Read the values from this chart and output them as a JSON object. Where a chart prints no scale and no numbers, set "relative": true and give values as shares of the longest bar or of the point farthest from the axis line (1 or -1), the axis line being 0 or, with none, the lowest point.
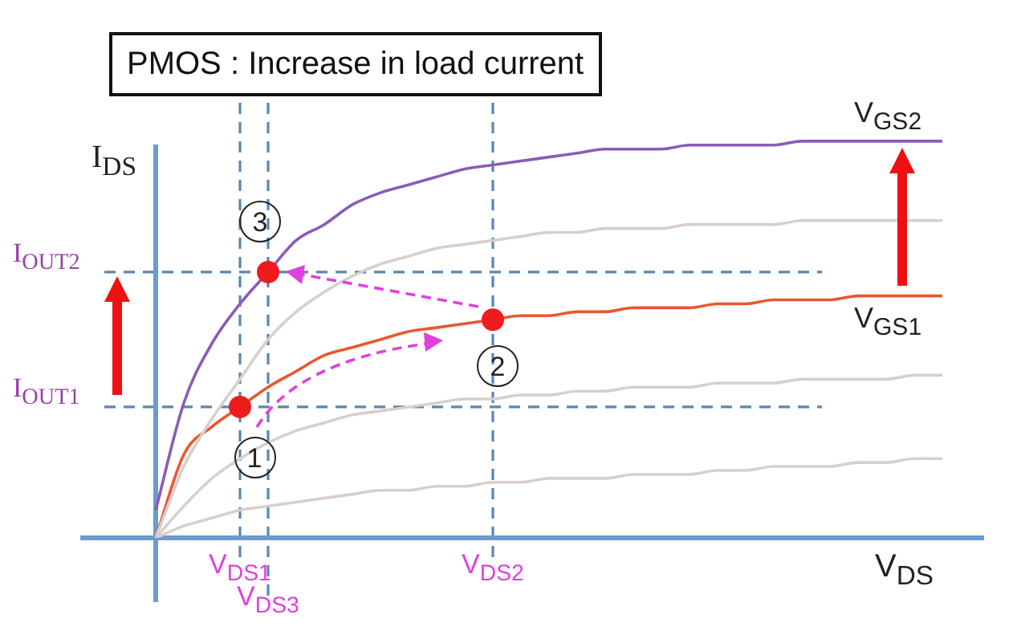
{
  "chart_data": {
    "type": "line",
    "title": "PMOS : Increase in load current",
    "xlabel": "V$_{DS}$",
    "ylabel": "I$_{DS}$",
    "relative": true,
    "legend": false,
    "marker": "none",
    "categories": [
      null,
      null,
      null,
      "V$_{DS1}$",
      "V$_{DS3}$",
      null,
      null,
      null,
      null,
      null,
      null,
      null,
      "V$_{DS2}$",
      null,
      null,
      null,
      null,
      null,
      null,
      null,
      null,
      null,
      null,
      null,
      null,
      null,
      null,
      null,
      null
    ],
    "series": [
      {
        "name": "V$_{GS2}$",
        "color": "#8a5cb8",
        "values": [
          0.07,
          0.34,
          0.49,
          0.59,
          0.67,
          0.75,
          0.79,
          0.84,
          0.87,
          0.89,
          0.91,
          0.93,
          0.94,
          0.95,
          0.96,
          0.97,
          0.98,
          0.98,
          0.98,
          0.99,
          0.99,
          0.99,
          0.99,
          1,
          1,
          1,
          1,
          1,
          1
        ]
      },
      {
        "color": "#d8cfcc",
        "values": [
          0,
          0.18,
          0.3,
          0.4,
          0.5,
          0.57,
          0.62,
          0.66,
          0.69,
          0.71,
          0.73,
          0.74,
          0.75,
          0.76,
          0.77,
          0.77,
          0.78,
          0.78,
          0.78,
          0.79,
          0.79,
          0.79,
          0.79,
          0.8,
          0.8,
          0.8,
          0.8,
          0.8,
          0.8
        ]
      },
      {
        "name": "V$_{GS1}$",
        "color": "#e8582f",
        "values": [
          0,
          0.21,
          0.28,
          0.33,
          0.38,
          0.42,
          0.46,
          0.48,
          0.5,
          0.52,
          0.53,
          0.54,
          0.55,
          0.56,
          0.56,
          0.57,
          0.57,
          0.58,
          0.58,
          0.58,
          0.59,
          0.59,
          0.6,
          0.6,
          0.6,
          0.61,
          0.61,
          0.61,
          0.61
        ]
      },
      {
        "color": "#d8cfcc",
        "values": [
          0,
          0.08,
          0.15,
          0.2,
          0.24,
          0.27,
          0.29,
          0.31,
          0.32,
          0.33,
          0.34,
          0.35,
          0.35,
          0.36,
          0.36,
          0.37,
          0.37,
          0.38,
          0.38,
          0.38,
          0.39,
          0.39,
          0.39,
          0.4,
          0.4,
          0.4,
          0.4,
          0.41,
          0.41
        ]
      },
      {
        "color": "#d8cfcc",
        "values": [
          0,
          0.03,
          0.05,
          0.07,
          0.08,
          0.09,
          0.1,
          0.11,
          0.12,
          0.12,
          0.13,
          0.13,
          0.14,
          0.14,
          0.15,
          0.15,
          0.15,
          0.16,
          0.16,
          0.16,
          0.17,
          0.17,
          0.18,
          0.18,
          0.18,
          0.19,
          0.19,
          0.2,
          0.2
        ]
      },
      {
        "type": "scatter",
        "color": "#ee1c1c",
        "marker": "circle",
        "x": [
          "V$_{DS1}$",
          "V$_{DS3}$",
          "V$_{DS2}$"
        ],
        "values": [
          0.33,
          0.67,
          0.55
        ]
      }
    ],
    "ref_lines": [
      {
        "axis": "y",
        "value": 0.67,
        "label": "I$_{OUT2}$",
        "color": "#5a86b0",
        "line_style": "dashed"
      },
      {
        "axis": "y",
        "value": 0.33,
        "label": "I$_{OUT1}$",
        "color": "#5a86b0",
        "line_style": "dashed"
      },
      {
        "axis": "x",
        "value": "V$_{DS1}$",
        "color": "#5a86b0",
        "line_style": "dashed"
      },
      {
        "axis": "x",
        "value": "V$_{DS3}$",
        "color": "#5a86b0",
        "line_style": "dashed"
      },
      {
        "axis": "x",
        "value": "V$_{DS2}$",
        "color": "#5a86b0",
        "line_style": "dashed"
      }
    ],
    "annotations": [
      {
        "text": "1",
        "x": "V$_{DS1}$",
        "y": 0.33
      },
      {
        "text": "2",
        "x": "V$_{DS2}$",
        "y": 0.55
      },
      {
        "text": "3",
        "x": "V$_{DS3}$",
        "y": 0.67
      }
    ]
  }
}
